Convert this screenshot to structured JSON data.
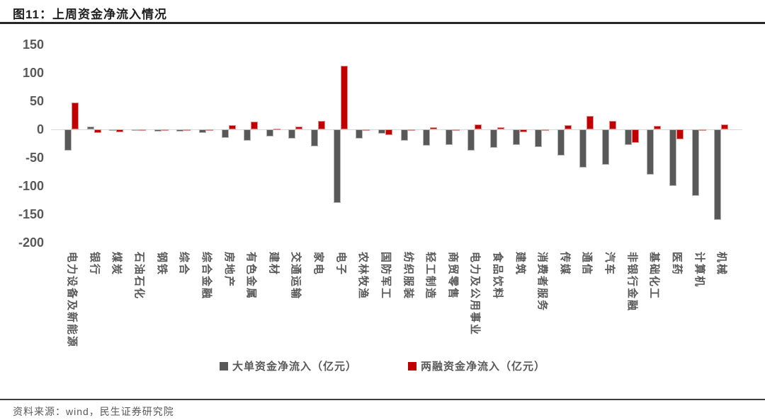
{
  "header": {
    "title": "图11：上周资金净流入情况"
  },
  "chart_data": {
    "type": "bar",
    "title": "上周资金净流入情况",
    "unit": "亿元",
    "categories": [
      "电力设备及新能源",
      "银行",
      "煤炭",
      "石油石化",
      "钢铁",
      "综合",
      "综合金融",
      "房地产",
      "有色金属",
      "建材",
      "交通运输",
      "家电",
      "电子",
      "农林牧渔",
      "国防军工",
      "纺织服装",
      "轻工制造",
      "商贸零售",
      "电力及公用事业",
      "食品饮料",
      "建筑",
      "消费者服务",
      "传媒",
      "通信",
      "汽车",
      "非银行金融",
      "基础化工",
      "医药",
      "计算机",
      "机械"
    ],
    "series": [
      {
        "name": "大单资金净流入（亿元）",
        "color": "#595959",
        "values": [
          -38,
          5,
          -1,
          -1,
          -4,
          -4,
          -6,
          -15,
          -20,
          -12,
          -16,
          -30,
          -130,
          -16,
          -8,
          -20,
          -29,
          -28,
          -38,
          -33,
          -28,
          -31,
          -46,
          -68,
          -63,
          -27,
          -80,
          -100,
          -118,
          -160
        ]
      },
      {
        "name": "两融资金净流入（亿元）",
        "color": "#C00000",
        "values": [
          48,
          -6,
          -5,
          -1,
          -1,
          -1,
          -1,
          8,
          14,
          1,
          5,
          15,
          113,
          -1,
          -10,
          -1,
          4,
          -1,
          9,
          4,
          -5,
          -2,
          8,
          24,
          15,
          -24,
          6,
          -18,
          -3,
          9
        ]
      }
    ],
    "yticks": [
      150,
      100,
      50,
      0,
      -50,
      -100,
      -150,
      -200
    ],
    "ylim": [
      -200,
      150
    ],
    "grid": "zero-line-only",
    "legend_position": "bottom"
  },
  "footer": {
    "source": "资料来源：wind，民生证券研究院"
  }
}
